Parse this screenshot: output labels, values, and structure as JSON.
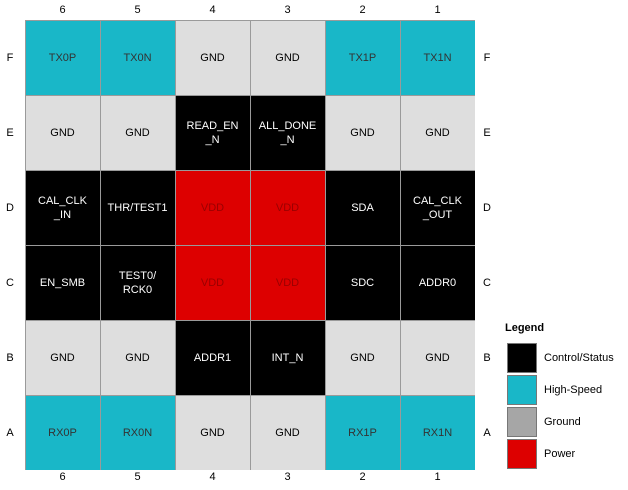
{
  "top_labels": [
    "6",
    "5",
    "4",
    "3",
    "2",
    "1"
  ],
  "bottom_labels": [
    "6",
    "5",
    "4",
    "3",
    "2",
    "1"
  ],
  "left_labels": [
    "F",
    "E",
    "D",
    "C",
    "B",
    "A"
  ],
  "right_labels": [
    "F",
    "E",
    "D",
    "C",
    "B",
    "A"
  ],
  "rows": [
    [
      {
        "text": "TX0P",
        "fill": "#19b7c8",
        "color": "#333333"
      },
      {
        "text": "TX0N",
        "fill": "#19b7c8",
        "color": "#333333"
      },
      {
        "text": "GND",
        "fill": "#dedede",
        "color": "#000000"
      },
      {
        "text": "GND",
        "fill": "#dedede",
        "color": "#000000"
      },
      {
        "text": "TX1P",
        "fill": "#19b7c8",
        "color": "#333333"
      },
      {
        "text": "TX1N",
        "fill": "#19b7c8",
        "color": "#333333"
      }
    ],
    [
      {
        "text": "GND",
        "fill": "#dedede",
        "color": "#000000"
      },
      {
        "text": "GND",
        "fill": "#dedede",
        "color": "#000000"
      },
      {
        "text": "READ_EN\n_N",
        "fill": "#000000",
        "color": "#ffffff"
      },
      {
        "text": "ALL_DONE\n_N",
        "fill": "#000000",
        "color": "#ffffff"
      },
      {
        "text": "GND",
        "fill": "#dedede",
        "color": "#000000"
      },
      {
        "text": "GND",
        "fill": "#dedede",
        "color": "#000000"
      }
    ],
    [
      {
        "text": "CAL_CLK\n_IN",
        "fill": "#000000",
        "color": "#ffffff"
      },
      {
        "text": "THR/TEST1",
        "fill": "#000000",
        "color": "#ffffff"
      },
      {
        "text": "VDD",
        "fill": "#dd0000",
        "color": "#9a0000"
      },
      {
        "text": "VDD",
        "fill": "#dd0000",
        "color": "#9a0000"
      },
      {
        "text": "SDA",
        "fill": "#000000",
        "color": "#ffffff"
      },
      {
        "text": "CAL_CLK\n_OUT",
        "fill": "#000000",
        "color": "#ffffff"
      }
    ],
    [
      {
        "text": "EN_SMB",
        "fill": "#000000",
        "color": "#ffffff"
      },
      {
        "text": "TEST0/\nRCK0",
        "fill": "#000000",
        "color": "#ffffff"
      },
      {
        "text": "VDD",
        "fill": "#dd0000",
        "color": "#9a0000"
      },
      {
        "text": "VDD",
        "fill": "#dd0000",
        "color": "#9a0000"
      },
      {
        "text": "SDC",
        "fill": "#000000",
        "color": "#ffffff"
      },
      {
        "text": "ADDR0",
        "fill": "#000000",
        "color": "#ffffff"
      }
    ],
    [
      {
        "text": "GND",
        "fill": "#dedede",
        "color": "#000000"
      },
      {
        "text": "GND",
        "fill": "#dedede",
        "color": "#000000"
      },
      {
        "text": "ADDR1",
        "fill": "#000000",
        "color": "#ffffff"
      },
      {
        "text": "INT_N",
        "fill": "#000000",
        "color": "#ffffff"
      },
      {
        "text": "GND",
        "fill": "#dedede",
        "color": "#000000"
      },
      {
        "text": "GND",
        "fill": "#dedede",
        "color": "#000000"
      }
    ],
    [
      {
        "text": "RX0P",
        "fill": "#19b7c8",
        "color": "#333333"
      },
      {
        "text": "RX0N",
        "fill": "#19b7c8",
        "color": "#333333"
      },
      {
        "text": "GND",
        "fill": "#dedede",
        "color": "#000000"
      },
      {
        "text": "GND",
        "fill": "#dedede",
        "color": "#000000"
      },
      {
        "text": "RX1P",
        "fill": "#19b7c8",
        "color": "#333333"
      },
      {
        "text": "RX1N",
        "fill": "#19b7c8",
        "color": "#333333"
      }
    ]
  ],
  "legend": {
    "title": "Legend",
    "items": [
      {
        "label": "Control/Status",
        "color": "#000000"
      },
      {
        "label": "High-Speed",
        "color": "#19b7c8"
      },
      {
        "label": "Ground",
        "color": "#a6a6a6"
      },
      {
        "label": "Power",
        "color": "#dd0000"
      }
    ]
  }
}
